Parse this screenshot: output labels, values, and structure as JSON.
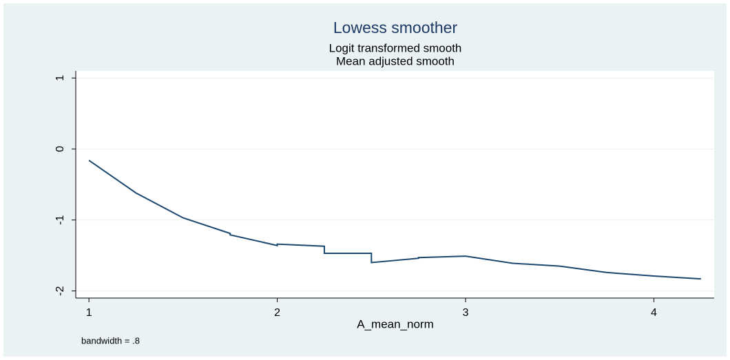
{
  "chart_data": {
    "type": "line",
    "title": "Lowess smoother",
    "subtitle": [
      "Logit transformed smooth",
      "Mean adjusted smooth"
    ],
    "x_label": "A_mean_norm",
    "note": "bandwidth = .8",
    "x": [
      1,
      1.25,
      1.5,
      1.75,
      1.75,
      2,
      2,
      2.25,
      2.25,
      2.5,
      2.5,
      2.75,
      2.75,
      3,
      3.25,
      3.5,
      3.75,
      4,
      4.25
    ],
    "series": [
      {
        "color": "#1a476f",
        "values": [
          -0.16,
          -0.62,
          -0.97,
          -1.19,
          -1.21,
          -1.36,
          -1.34,
          -1.37,
          -1.47,
          -1.47,
          -1.6,
          -1.54,
          -1.53,
          -1.51,
          -1.61,
          -1.65,
          -1.74,
          -1.79,
          -1.83
        ]
      }
    ],
    "xlim": [
      0.93,
      4.32
    ],
    "xticks": [
      1,
      2,
      3,
      4
    ],
    "ylim": [
      -2.1,
      1.1
    ],
    "yticks": [
      1,
      0,
      -1,
      -2
    ],
    "grid": true
  }
}
